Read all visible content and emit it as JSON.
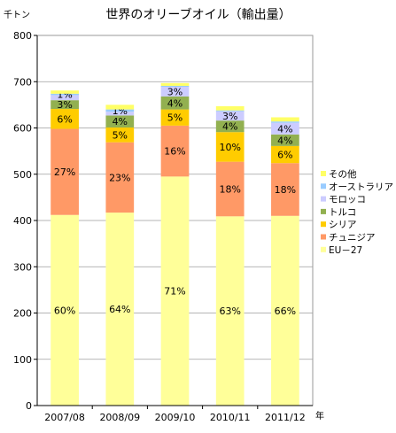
{
  "chart_data": {
    "type": "bar",
    "stacked": true,
    "title": "世界のオリーブオイル（輸出量）",
    "ylabel": "千トン",
    "xlabel": "年",
    "ylim": [
      0,
      800
    ],
    "yticks": [
      0,
      100,
      200,
      300,
      400,
      500,
      600,
      700,
      800
    ],
    "grid": true,
    "legend_position": "right",
    "categories": [
      "2007/08",
      "2008/09",
      "2009/10",
      "2010/11",
      "2011/12"
    ],
    "series": [
      {
        "name": "EU－27",
        "color": "#ffff99",
        "values": [
          412,
          417,
          495,
          409,
          410
        ],
        "labels": [
          "60%",
          "64%",
          "71%",
          "63%",
          "66%"
        ]
      },
      {
        "name": "チュニジア",
        "color": "#ff9966",
        "values": [
          186,
          152,
          110,
          118,
          114
        ],
        "labels": [
          "27%",
          "23%",
          "16%",
          "18%",
          "18%"
        ]
      },
      {
        "name": "シリア",
        "color": "#ffcc00",
        "values": [
          43,
          32,
          35,
          64,
          37
        ],
        "labels": [
          "6%",
          "5%",
          "5%",
          "10%",
          "6%"
        ]
      },
      {
        "name": "トルコ",
        "color": "#92b050",
        "values": [
          19,
          26,
          28,
          25,
          25
        ],
        "labels": [
          "3%",
          "4%",
          "4%",
          "4%",
          "4%"
        ]
      },
      {
        "name": "モロッコ",
        "color": "#ccccff",
        "values": [
          11,
          8,
          21,
          20,
          25
        ],
        "labels": [
          "",
          "",
          "3%",
          "3%",
          "4%"
        ]
      },
      {
        "name": "オーストラリア",
        "color": "#99ccff",
        "values": [
          3,
          5,
          2,
          2,
          3
        ],
        "labels": [
          "1%",
          "1%",
          "",
          "",
          ""
        ]
      },
      {
        "name": "その他",
        "color": "#ffff66",
        "values": [
          7,
          10,
          6,
          9,
          9
        ],
        "labels": [
          "",
          "",
          "",
          "",
          ""
        ]
      }
    ]
  }
}
